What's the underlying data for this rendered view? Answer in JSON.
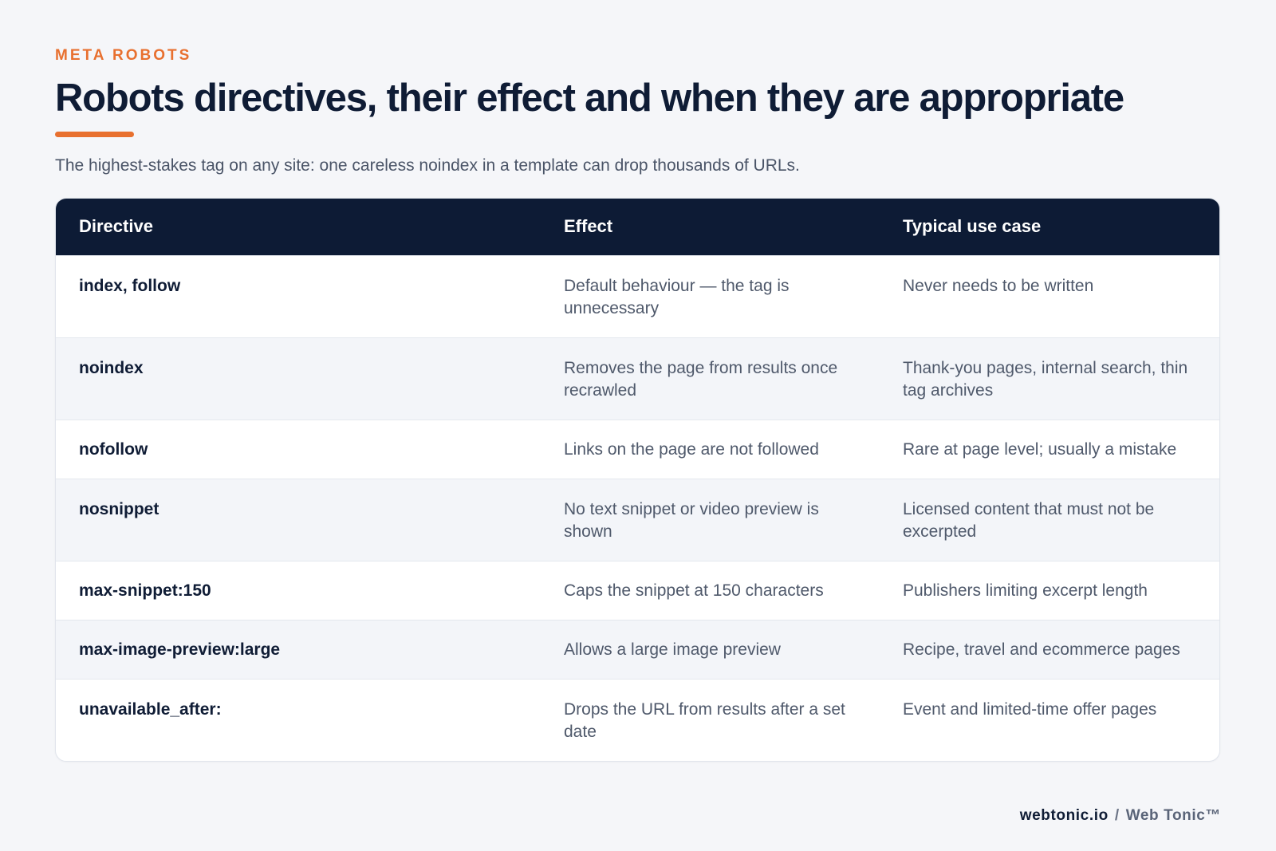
{
  "header": {
    "eyebrow": "META ROBOTS",
    "title": "Robots directives, their effect and when they are appropriate",
    "subtitle": "The highest-stakes tag on any site: one careless noindex in a template can drop thousands of URLs."
  },
  "table": {
    "columns": [
      "Directive",
      "Effect",
      "Typical use case"
    ],
    "rows": [
      {
        "directive": "index, follow",
        "effect": "Default behaviour — the tag is unnecessary",
        "use_case": "Never needs to be written"
      },
      {
        "directive": "noindex",
        "effect": "Removes the page from results once recrawled",
        "use_case": "Thank-you pages, internal search, thin tag archives"
      },
      {
        "directive": "nofollow",
        "effect": "Links on the page are not followed",
        "use_case": "Rare at page level; usually a mistake"
      },
      {
        "directive": "nosnippet",
        "effect": "No text snippet or video preview is shown",
        "use_case": "Licensed content that must not be excerpted"
      },
      {
        "directive": "max-snippet:150",
        "effect": "Caps the snippet at 150 characters",
        "use_case": "Publishers limiting excerpt length"
      },
      {
        "directive": "max-image-preview:large",
        "effect": "Allows a large image preview",
        "use_case": "Recipe, travel and ecommerce pages"
      },
      {
        "directive": "unavailable_after:",
        "effect": "Drops the URL from results after a set date",
        "use_case": "Event and limited-time offer pages"
      }
    ]
  },
  "footer": {
    "domain": "webtonic.io",
    "separator": "/",
    "brand": "Web Tonic™"
  },
  "colors": {
    "accent": "#e8702f",
    "header_bg": "#0d1b35",
    "page_bg": "#f5f6f9"
  }
}
